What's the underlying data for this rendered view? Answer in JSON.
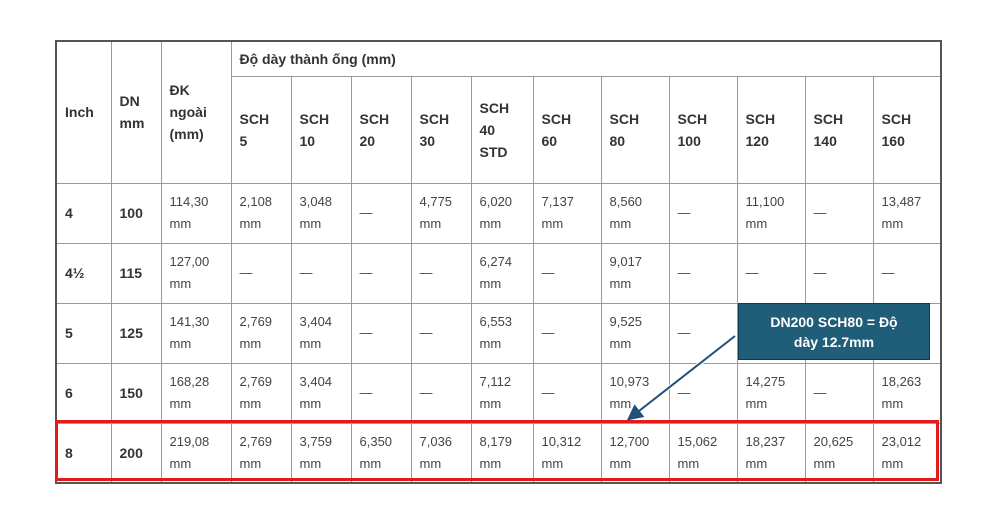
{
  "table": {
    "headers": [
      "Inch",
      "DN\nmm",
      "ĐK\nngoài\n(mm)"
    ],
    "group_header": "Độ dày thành ống (mm)",
    "schedules": [
      "SCH\n5",
      "SCH\n10",
      "SCH\n20",
      "SCH\n30",
      "SCH\n40\nSTD",
      "SCH\n60",
      "SCH\n80",
      "SCH\n100",
      "SCH\n120",
      "SCH\n140",
      "SCH\n160"
    ],
    "rows": [
      [
        "4",
        "100",
        "114,30\nmm",
        "2,108\nmm",
        "3,048\nmm",
        "—",
        "4,775\nmm",
        "6,020\nmm",
        "7,137\nmm",
        "8,560\nmm",
        "—",
        "11,100\nmm",
        "—",
        "13,487\nmm"
      ],
      [
        "4½",
        "115",
        "127,00\nmm",
        "—",
        "—",
        "—",
        "—",
        "6,274\nmm",
        "—",
        "9,017\nmm",
        "—",
        "—",
        "—",
        "—"
      ],
      [
        "5",
        "125",
        "141,30\nmm",
        "2,769\nmm",
        "3,404\nmm",
        "—",
        "—",
        "6,553\nmm",
        "—",
        "9,525\nmm",
        "—",
        "",
        "",
        ""
      ],
      [
        "6",
        "150",
        "168,28\nmm",
        "2,769\nmm",
        "3,404\nmm",
        "—",
        "—",
        "7,112\nmm",
        "—",
        "10,973\nmm",
        "—",
        "14,275\nmm",
        "—",
        "18,263\nmm"
      ],
      [
        "8",
        "200",
        "219,08\nmm",
        "2,769\nmm",
        "3,759\nmm",
        "6,350\nmm",
        "7,036\nmm",
        "8,179\nmm",
        "10,312\nmm",
        "12,700\nmm",
        "15,062\nmm",
        "18,237\nmm",
        "20,625\nmm",
        "23,012\nmm"
      ]
    ]
  },
  "callout": {
    "text": "DN200 SCH80 = Độ dày 12.7mm"
  }
}
